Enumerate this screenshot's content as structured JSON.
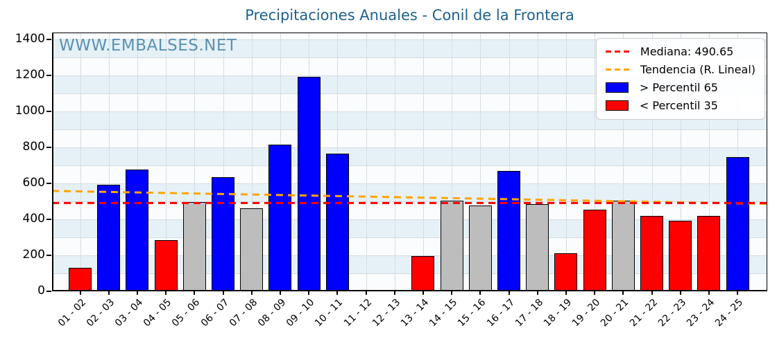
{
  "watermark": "WWW.EMBALSES.NET",
  "chart_data": {
    "type": "bar",
    "title": "Precipitaciones Anuales - Conil de la Frontera",
    "categories": [
      "01 - 02",
      "02 - 03",
      "03 - 04",
      "04 - 05",
      "05 - 06",
      "06 - 07",
      "07 - 08",
      "08 - 09",
      "09 - 10",
      "10 - 11",
      "11 - 12",
      "12 - 13",
      "13 - 14",
      "14 - 15",
      "15 - 16",
      "16 - 17",
      "17 - 18",
      "18 - 19",
      "19 - 20",
      "20 - 21",
      "21 - 22",
      "22 - 23",
      "23 - 24",
      "24 - 25"
    ],
    "values": [
      132,
      592,
      678,
      283,
      496,
      634,
      460,
      816,
      1193,
      764,
      null,
      null,
      196,
      503,
      478,
      668,
      483,
      210,
      455,
      503,
      420,
      392,
      418,
      745
    ],
    "classes": [
      "below",
      "above",
      "above",
      "below",
      "mid",
      "above",
      "mid",
      "above",
      "above",
      "above",
      "none",
      "none",
      "below",
      "mid",
      "mid",
      "above",
      "mid",
      "below",
      "below",
      "mid",
      "below",
      "below",
      "below",
      "above"
    ],
    "class_colors": {
      "above": "#0000ff",
      "below": "#ff0000",
      "mid": "#bdbdbd"
    },
    "median": 490.65,
    "median_color": "#ff0000",
    "trend": {
      "start": 558,
      "end": 486,
      "color": "#ffa500"
    },
    "yticks": [
      0,
      200,
      400,
      600,
      800,
      1000,
      1200,
      1400
    ],
    "ylim": [
      0,
      1438
    ],
    "grid": "on",
    "band_colors": {
      "odd": "#e6f1f7",
      "even": "#fafcfd"
    },
    "grid_color": "#d4dde2",
    "legend_position": "upper-right",
    "legend_items": [
      {
        "label": "Mediana: 490.65",
        "swatch": "dashed-line",
        "color": "#ff0000"
      },
      {
        "label": "Tendencia (R. Lineal)",
        "swatch": "dashed-line",
        "color": "#ffa500"
      },
      {
        "label": "> Percentil 65",
        "swatch": "box",
        "color": "#0000ff"
      },
      {
        "label": "< Percentil 35",
        "swatch": "box",
        "color": "#ff0000"
      }
    ]
  }
}
